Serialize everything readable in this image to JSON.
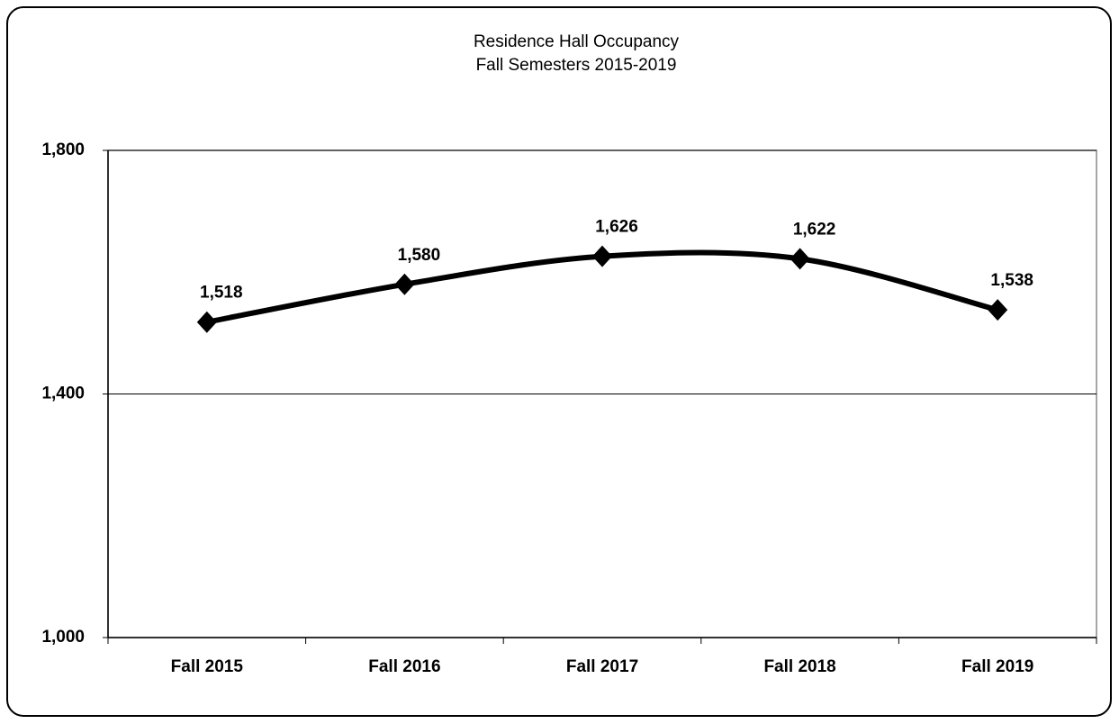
{
  "chart_data": {
    "type": "line",
    "title": "Residence Hall Occupancy",
    "subtitle": "Fall Semesters 2015-2019",
    "categories": [
      "Fall 2015",
      "Fall 2016",
      "Fall 2017",
      "Fall 2018",
      "Fall 2019"
    ],
    "series": [
      {
        "name": "Occupancy",
        "color": "#000000",
        "values": [
          1518,
          1580,
          1626,
          1622,
          1538
        ],
        "value_labels": [
          "1,518",
          "1,580",
          "1,626",
          "1,622",
          "1,538"
        ]
      }
    ],
    "ylim": [
      1000,
      1800
    ],
    "yticks": [
      {
        "value": 1000,
        "label": "1,000"
      },
      {
        "value": 1400,
        "label": "1,400"
      },
      {
        "value": 1800,
        "label": "1,800"
      }
    ],
    "grid": true,
    "smooth": true
  }
}
